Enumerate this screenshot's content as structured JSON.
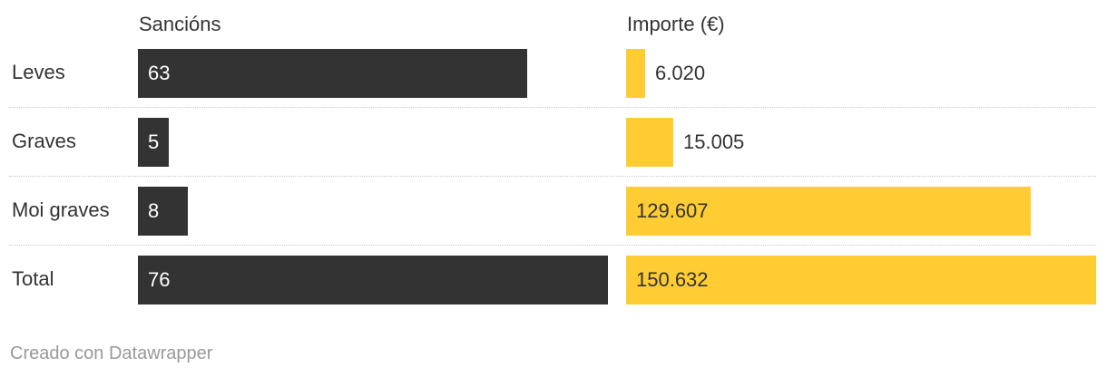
{
  "chart_data": {
    "type": "bar",
    "categories": [
      "Leves",
      "Graves",
      "Moi graves",
      "Total"
    ],
    "series": [
      {
        "name": "Sancións",
        "values": [
          63,
          5,
          8,
          76
        ],
        "labels": [
          "63",
          "5",
          "8",
          "76"
        ],
        "color": "#333333"
      },
      {
        "name": "Importe (€)",
        "values": [
          6020,
          15005,
          129607,
          150632
        ],
        "labels": [
          "6.020",
          "15.005",
          "129.607",
          "150.632"
        ],
        "color": "#ffcc33"
      }
    ]
  },
  "footer": {
    "credit": "Creado con Datawrapper"
  }
}
